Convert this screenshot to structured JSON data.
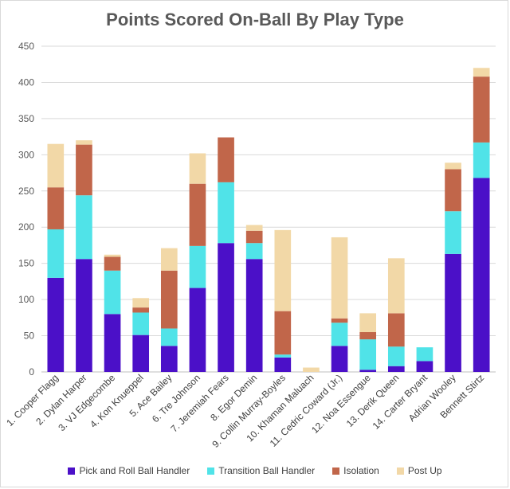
{
  "chart_data": {
    "type": "bar",
    "stacked": true,
    "title": "Points Scored On-Ball By Play Type",
    "ylim": [
      0,
      450
    ],
    "yticks": [
      0,
      50,
      100,
      150,
      200,
      250,
      300,
      350,
      400,
      450
    ],
    "grid": true,
    "legend_position": "bottom",
    "categories": [
      "1. Cooper Flagg",
      "2. Dylan Harper",
      "3. VJ Edgecombe",
      "4. Kon Knueppel",
      "5. Ace Bailey",
      "6. Tre Johnson",
      "7. Jeremiah Fears",
      "8. Egor Demin",
      "9. Collin Murray-Boyles",
      "10. Khaman Maluach",
      "11. Cedric Coward (Jr.)",
      "12. Noa Essengue",
      "13. Derik Queen",
      "14. Carter Bryant",
      "Adrian Wooley",
      "Bennett Stirtz"
    ],
    "series": [
      {
        "name": "Pick and Roll Ball Handler",
        "color": "#4b10c8",
        "values": [
          130,
          156,
          80,
          51,
          36,
          116,
          178,
          156,
          20,
          0,
          36,
          3,
          8,
          15,
          163,
          268
        ]
      },
      {
        "name": "Transition Ball Handler",
        "color": "#50e3e8",
        "values": [
          67,
          88,
          60,
          31,
          24,
          58,
          84,
          22,
          4,
          0,
          32,
          42,
          27,
          19,
          59,
          49
        ]
      },
      {
        "name": "Isolation",
        "color": "#c1664a",
        "values": [
          58,
          70,
          19,
          7,
          80,
          86,
          62,
          17,
          60,
          0,
          6,
          10,
          46,
          0,
          58,
          91
        ]
      },
      {
        "name": "Post Up",
        "color": "#f2d8a7",
        "values": [
          60,
          6,
          3,
          13,
          31,
          42,
          0,
          8,
          112,
          6,
          112,
          26,
          76,
          0,
          9,
          12
        ]
      }
    ]
  }
}
